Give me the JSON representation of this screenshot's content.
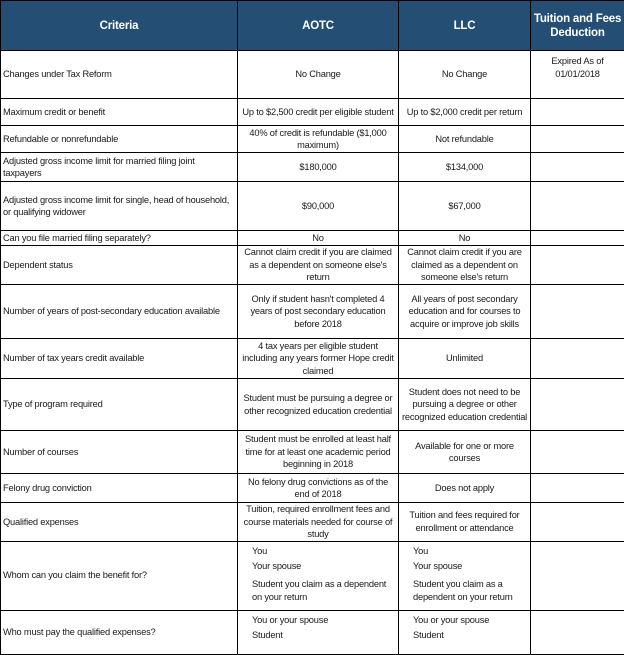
{
  "header": {
    "criteria": "Criteria",
    "aotc": "AOTC",
    "llc": "LLC",
    "tfd": "Tuition and Fees Deduction"
  },
  "header_color": "#254e75",
  "rows": [
    {
      "criteria": "Changes under Tax Reform",
      "aotc": "No Change",
      "llc": "No Change",
      "tfd": "Expired As of 01/01/2018"
    },
    {
      "criteria": "Maximum credit or benefit",
      "aotc": "Up to $2,500 credit per eligible student",
      "llc": "Up to $2,000 credit per return",
      "tfd": ""
    },
    {
      "criteria": "Refundable or nonrefundable",
      "aotc": "40% of credit is refundable ($1,000 maximum)",
      "llc": "Not refundable",
      "tfd": ""
    },
    {
      "criteria": "Adjusted gross income limit for married filing joint taxpayers",
      "aotc": "$180,000",
      "llc": "$134,000",
      "tfd": ""
    },
    {
      "criteria": "Adjusted gross income limit for single, head of household, or qualifying widower",
      "aotc": "$90,000",
      "llc": "$67,000",
      "tfd": ""
    },
    {
      "criteria": "Can you file married filing separately?",
      "aotc": "No",
      "llc": "No",
      "tfd": ""
    },
    {
      "criteria": "Dependent status",
      "aotc": "Cannot claim credit if you are claimed as a dependent on someone else's return",
      "llc": "Cannot claim credit if you are claimed as a dependent on someone else's return",
      "tfd": ""
    },
    {
      "criteria": "Number of years of post-secondary education available",
      "aotc": "Only if student hasn't completed 4 years of post secondary education before 2018",
      "llc": "All years of post secondary education and for courses to acquire or improve job skills",
      "tfd": ""
    },
    {
      "criteria": "Number of tax years credit available",
      "aotc": "4 tax years per eligible student including any years former Hope credit claimed",
      "llc": "Unlimited",
      "tfd": ""
    },
    {
      "criteria": "Type of program required",
      "aotc": "Student must be pursuing a degree or other recognized education credential",
      "llc": "Student does not need to be pursuing a degree or other recognized education credential",
      "tfd": ""
    },
    {
      "criteria": "Number of courses",
      "aotc": "Student must be enrolled at least half time for at least one academic period beginning in 2018",
      "llc": "Available for one or more courses",
      "tfd": ""
    },
    {
      "criteria": "Felony drug conviction",
      "aotc": "No felony drug convictions as of the end of 2018",
      "llc": "Does not apply",
      "tfd": ""
    },
    {
      "criteria": "Qualified expenses",
      "aotc": "Tuition, required enrollment fees and course materials needed for course of study",
      "llc": "Tuition and fees required for enrollment or attendance",
      "tfd": ""
    }
  ],
  "whom": {
    "criteria": "Whom can you claim the benefit for?",
    "aotc": [
      "You",
      "Your spouse",
      "Student you claim as a dependent on your return"
    ],
    "llc": [
      "You",
      "Your spouse",
      "Student you claim as a dependent on your return"
    ]
  },
  "who_pays": {
    "criteria": "Who must pay the qualified expenses?",
    "aotc": [
      "You or your spouse",
      "Student"
    ],
    "llc": [
      "You or your spouse",
      "Student"
    ]
  }
}
